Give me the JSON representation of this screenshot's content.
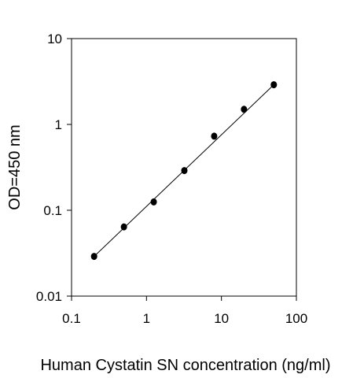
{
  "chart_data": {
    "type": "scatter",
    "title": "",
    "xlabel": "Human Cystatin SN concentration (ng/ml)",
    "ylabel": "OD=450 nm",
    "xscale": "log",
    "yscale": "log",
    "xlim": [
      0.1,
      100
    ],
    "ylim": [
      0.01,
      10
    ],
    "x_ticks": [
      0.1,
      1,
      10,
      100
    ],
    "x_tick_labels": [
      "0.1",
      "1",
      "10",
      "100"
    ],
    "y_ticks": [
      0.01,
      0.1,
      1,
      10
    ],
    "y_tick_labels": [
      "0.01",
      "0.1",
      "1",
      "10"
    ],
    "grid": false,
    "legend": "none",
    "series": [
      {
        "x": [
          0.2,
          0.5,
          1.25,
          3.2,
          8,
          20,
          50
        ],
        "y": [
          0.029,
          0.064,
          0.125,
          0.29,
          0.73,
          1.5,
          2.9
        ],
        "marker": "circle",
        "color": "#000000"
      }
    ],
    "fit_line": {
      "type": "power",
      "x_range": [
        0.2,
        50
      ],
      "y_range": [
        0.029,
        2.9
      ],
      "color": "#000000"
    }
  }
}
